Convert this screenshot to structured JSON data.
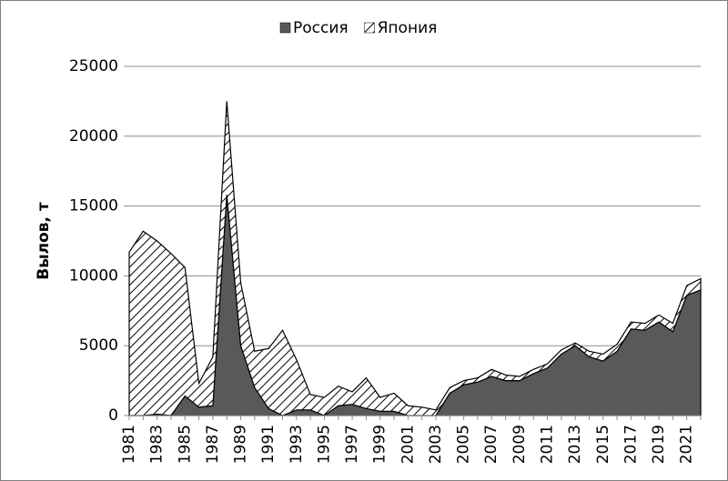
{
  "chart_data": {
    "type": "stacked-area",
    "y_label": "Вылов, т",
    "categories": [
      "1981",
      null,
      "1983",
      null,
      "1985",
      null,
      "1987",
      null,
      "1989",
      null,
      "1991",
      null,
      "1993",
      null,
      "1995",
      null,
      "1997",
      null,
      "1999",
      null,
      "2001",
      null,
      "2003",
      null,
      "2005",
      null,
      "2007",
      null,
      "2009",
      null,
      "2011",
      null,
      "2013",
      null,
      "2015",
      null,
      "2017",
      null,
      "2019",
      null,
      "2021",
      null
    ],
    "series": [
      {
        "name": "Россия",
        "color": "#595959",
        "values": [
          0,
          0,
          100,
          0,
          1400,
          600,
          700,
          15800,
          5000,
          2000,
          500,
          0,
          400,
          400,
          0,
          700,
          800,
          500,
          300,
          300,
          0,
          0,
          0,
          1600,
          2200,
          2400,
          2800,
          2500,
          2500,
          3000,
          3400,
          4400,
          5000,
          4200,
          3900,
          4600,
          6200,
          6100,
          6700,
          6000,
          8600,
          9000
        ]
      },
      {
        "name": "Япония",
        "color": "#000000",
        "pattern": "hatch",
        "values": [
          11700,
          13200,
          12400,
          11600,
          9200,
          1700,
          3500,
          6700,
          4500,
          2600,
          4300,
          6100,
          3600,
          1100,
          1300,
          1400,
          900,
          2200,
          1000,
          1300,
          700,
          600,
          400,
          400,
          300,
          300,
          500,
          400,
          300,
          300,
          300,
          300,
          200,
          400,
          500,
          500,
          500,
          500,
          500,
          600,
          700,
          800
        ]
      }
    ],
    "ylim": [
      0,
      25000
    ],
    "yticks": [
      0,
      5000,
      10000,
      15000,
      20000,
      25000
    ],
    "grid": true,
    "legend": "top"
  }
}
